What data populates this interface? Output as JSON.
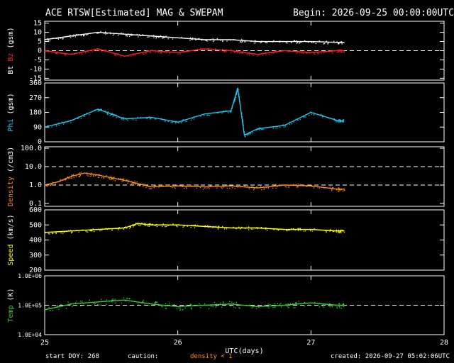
{
  "header": {
    "title": "ACE RTSW[Estimated] MAG & SWEPAM",
    "begin": "Begin: 2026-09-25 00:00:00UTC"
  },
  "footer": {
    "start_doy": "start DOY: 268",
    "caution": "caution:",
    "density_note": "density < 1",
    "created": "created: 2026-09-27 05:02:06UTC"
  },
  "colors": {
    "bt": "#ffffff",
    "bz": "#ff2020",
    "phi": "#20c8f0",
    "density": "#ff8c1a",
    "speed": "#ffff00",
    "temp": "#30d030",
    "axes": "#ffffff",
    "reference": "#ffffff"
  },
  "chart_data": {
    "type": "scatter",
    "xlabel": "UTC(days)",
    "x_ticks": [
      "25",
      "26",
      "27",
      "28"
    ],
    "xlim": [
      25,
      28
    ],
    "panels": [
      {
        "id": "mag",
        "ylabel_parts": [
          {
            "text": "Bt",
            "color": "#ffffff"
          },
          {
            "text": "Bz",
            "color": "#ff2020"
          },
          {
            "text": "(gsm)",
            "color": "#ffffff"
          }
        ],
        "ylim": [
          -16,
          16
        ],
        "scale": "linear",
        "y_ticks": [
          "15",
          "10",
          "5",
          "0",
          "-5",
          "-10",
          "-15"
        ],
        "reference_lines": [
          0
        ],
        "series": [
          {
            "name": "Bt",
            "color": "#ffffff",
            "x": [
              25.0,
              25.2,
              25.4,
              25.6,
              25.8,
              26.0,
              26.2,
              26.4,
              26.6,
              26.8,
              27.0,
              27.2,
              27.25
            ],
            "y": [
              6,
              8,
              10,
              9,
              8,
              7,
              6,
              6,
              5,
              5,
              5,
              4.5,
              4.5
            ]
          },
          {
            "name": "Bz",
            "color": "#ff2020",
            "x": [
              25.0,
              25.2,
              25.4,
              25.6,
              25.8,
              26.0,
              26.2,
              26.4,
              26.6,
              26.8,
              27.0,
              27.2,
              27.25
            ],
            "y": [
              0,
              -2,
              1,
              -3,
              0,
              -1,
              1,
              0,
              -2,
              0,
              -1,
              0,
              0
            ]
          }
        ]
      },
      {
        "id": "phi",
        "ylabel_parts": [
          {
            "text": "Phi",
            "color": "#20c8f0"
          },
          {
            "text": "(gsm)",
            "color": "#ffffff"
          }
        ],
        "ylim": [
          0,
          360
        ],
        "scale": "linear",
        "y_ticks": [
          "360",
          "270",
          "180",
          "90",
          "0"
        ],
        "reference_lines": [],
        "series": [
          {
            "name": "Phi",
            "color": "#20c8f0",
            "x": [
              25.0,
              25.2,
              25.4,
              25.5,
              25.6,
              25.8,
              26.0,
              26.2,
              26.4,
              26.45,
              26.5,
              26.6,
              26.8,
              27.0,
              27.2,
              27.25
            ],
            "y": [
              90,
              130,
              200,
              170,
              140,
              150,
              120,
              170,
              190,
              330,
              40,
              80,
              100,
              180,
              130,
              130
            ]
          }
        ]
      },
      {
        "id": "density",
        "ylabel_parts": [
          {
            "text": "Density",
            "color": "#ff8c1a"
          },
          {
            "text": "(/cm3)",
            "color": "#ffffff"
          }
        ],
        "ylim": [
          0.07,
          120
        ],
        "scale": "log",
        "y_ticks": [
          "100.0",
          "10.0",
          "1.0",
          "0.1"
        ],
        "reference_lines": [
          10,
          1
        ],
        "series": [
          {
            "name": "Density",
            "color": "#ff8c1a",
            "x": [
              25.0,
              25.1,
              25.2,
              25.3,
              25.4,
              25.5,
              25.6,
              25.7,
              25.8,
              26.0,
              26.2,
              26.4,
              26.6,
              26.8,
              27.0,
              27.2,
              27.25
            ],
            "y": [
              1.0,
              1.5,
              3.0,
              4.5,
              3.5,
              2.5,
              1.8,
              1.2,
              0.8,
              0.9,
              0.8,
              0.9,
              0.7,
              1.0,
              0.9,
              0.6,
              0.6
            ]
          }
        ]
      },
      {
        "id": "speed",
        "ylabel_parts": [
          {
            "text": "Speed",
            "color": "#ffff00"
          },
          {
            "text": "(km/s)",
            "color": "#ffffff"
          }
        ],
        "ylim": [
          200,
          600
        ],
        "scale": "linear",
        "y_ticks": [
          "600",
          "500",
          "400",
          "300",
          "200"
        ],
        "reference_lines": [],
        "series": [
          {
            "name": "Speed",
            "color": "#ffff00",
            "x": [
              25.0,
              25.2,
              25.4,
              25.6,
              25.7,
              25.8,
              26.0,
              26.2,
              26.4,
              26.6,
              26.8,
              27.0,
              27.2,
              27.25
            ],
            "y": [
              450,
              460,
              470,
              480,
              510,
              500,
              500,
              490,
              480,
              480,
              470,
              470,
              460,
              460
            ]
          }
        ]
      },
      {
        "id": "temp",
        "ylabel_parts": [
          {
            "text": "Temp",
            "color": "#30d030"
          },
          {
            "text": "(K)",
            "color": "#ffffff"
          }
        ],
        "ylim": [
          10000,
          1000000
        ],
        "scale": "log",
        "y_ticks": [
          "1.0E+06",
          "1.0E+05",
          "1.0E+04"
        ],
        "reference_lines": [
          100000
        ],
        "series": [
          {
            "name": "Temp",
            "color": "#30d030",
            "x": [
              25.0,
              25.2,
              25.4,
              25.6,
              25.8,
              26.0,
              26.2,
              26.4,
              26.6,
              26.8,
              27.0,
              27.2,
              27.25
            ],
            "y": [
              70000,
              110000,
              130000,
              150000,
              110000,
              90000,
              100000,
              110000,
              90000,
              100000,
              120000,
              100000,
              100000
            ]
          }
        ]
      }
    ]
  }
}
